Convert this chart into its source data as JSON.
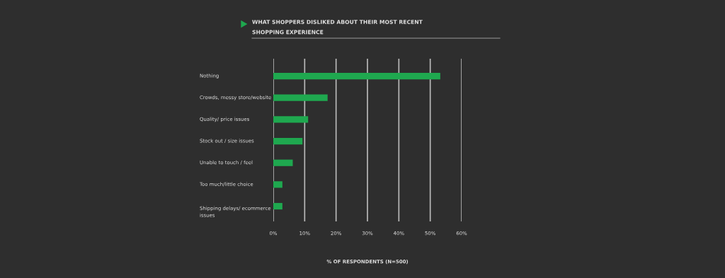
{
  "chart_data": {
    "type": "bar",
    "orientation": "horizontal",
    "title": "WHAT SHOPPERS DISLIKED ABOUT THEIR MOST RECENT\nSHOPPING EXPERIENCE",
    "xlabel": "% OF RESPONDENTS (N=500)",
    "categories": [
      "Nothing",
      "Crowds, messy store/website",
      "Quality/ price issues",
      "Stock out / size issues",
      "Unable to touch / feel",
      "Too much/little choice",
      "Shipping delays/ ecommerce\nissues"
    ],
    "values": [
      53.2,
      17.3,
      11.1,
      9.3,
      6.2,
      2.9,
      2.9
    ],
    "color": "#1fa84f",
    "xlim": [
      0,
      60
    ],
    "xticks": [
      {
        "value": 0,
        "label": "0%"
      },
      {
        "value": 10,
        "label": "10%"
      },
      {
        "value": 20,
        "label": "20%"
      },
      {
        "value": 30,
        "label": "30%"
      },
      {
        "value": 40,
        "label": "40%"
      },
      {
        "value": 50,
        "label": "50%"
      },
      {
        "value": 60,
        "label": "60%"
      }
    ],
    "grid": "x",
    "legend": false
  }
}
